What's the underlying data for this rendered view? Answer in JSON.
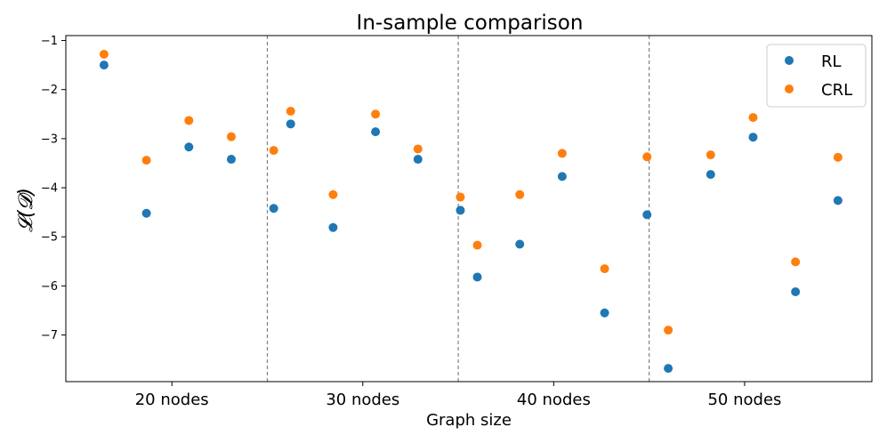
{
  "chart_data": {
    "type": "scatter",
    "title": "In-sample comparison",
    "xlabel": "Graph size",
    "ylabel": "𝓛(𝓓)",
    "ylim": [
      -7.95,
      -0.9
    ],
    "yticks": [
      -1,
      -2,
      -3,
      -4,
      -5,
      -6,
      -7
    ],
    "ytick_labels": [
      "−1",
      "−2",
      "−3",
      "−4",
      "−5",
      "−6",
      "−7"
    ],
    "xlim": [
      0,
      19
    ],
    "xticks": [
      2.5,
      7,
      11.5,
      16
    ],
    "xtick_labels": [
      "20 nodes",
      "30 nodes",
      "40 nodes",
      "50 nodes"
    ],
    "separators": [
      4.75,
      9.25,
      13.75
    ],
    "legend_position": "top-right",
    "series": [
      {
        "name": "RL",
        "color": "#1f77b4",
        "x": [
          0.9,
          1.9,
          2.9,
          3.9,
          4.9,
          5.3,
          6.3,
          7.3,
          8.3,
          9.3,
          9.7,
          10.7,
          11.7,
          12.7,
          13.7,
          14.2,
          15.2,
          16.2,
          17.2,
          18.2
        ],
        "y": [
          -1.5,
          -4.52,
          -3.17,
          -3.42,
          -4.42,
          -2.7,
          -4.81,
          -2.86,
          -3.42,
          -4.46,
          -5.82,
          -5.15,
          -3.77,
          -6.55,
          -4.55,
          -7.68,
          -3.73,
          -2.97,
          -6.12,
          -4.26
        ]
      },
      {
        "name": "CRL",
        "color": "#ff7f0e",
        "x": [
          0.9,
          1.9,
          2.9,
          3.9,
          4.9,
          5.3,
          6.3,
          7.3,
          8.3,
          9.3,
          9.7,
          10.7,
          11.7,
          12.7,
          13.7,
          14.2,
          15.2,
          16.2,
          17.2,
          18.2
        ],
        "y": [
          -1.28,
          -3.44,
          -2.63,
          -2.96,
          -3.24,
          -2.44,
          -4.14,
          -2.5,
          -3.21,
          -4.19,
          -5.17,
          -4.14,
          -3.3,
          -5.65,
          -3.37,
          -6.9,
          -3.33,
          -2.57,
          -5.51,
          -3.38
        ]
      }
    ]
  }
}
